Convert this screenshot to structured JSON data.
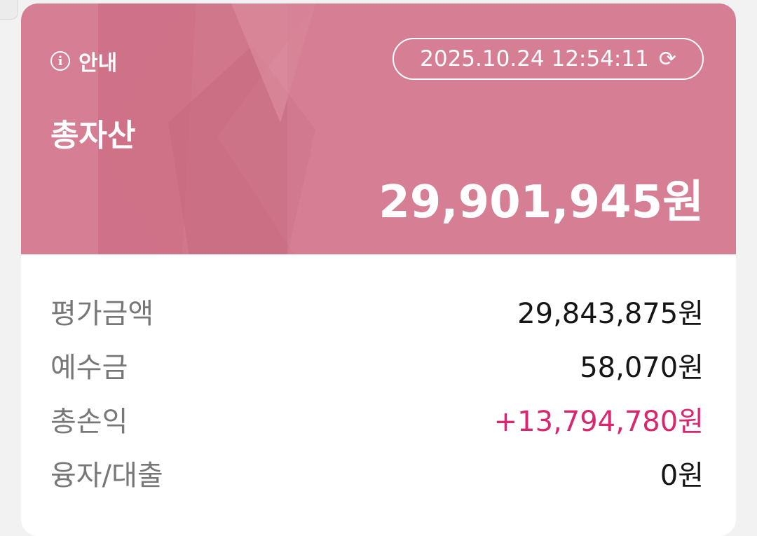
{
  "header": {
    "info_label": "안내",
    "info_icon": "info-circle-icon",
    "timestamp": "2025.10.24 12:54:11",
    "refresh_icon": "refresh-icon",
    "title": "총자산",
    "total_value": "29,901,945원",
    "accent_color": "#d67f94"
  },
  "rows": [
    {
      "label": "평가금액",
      "value": "29,843,875원"
    },
    {
      "label": "예수금",
      "value": "58,070원"
    },
    {
      "label": "총손익",
      "value": "+13,794,780원",
      "color": "#d9266f"
    },
    {
      "label": "융자/대출",
      "value": "0원"
    }
  ]
}
